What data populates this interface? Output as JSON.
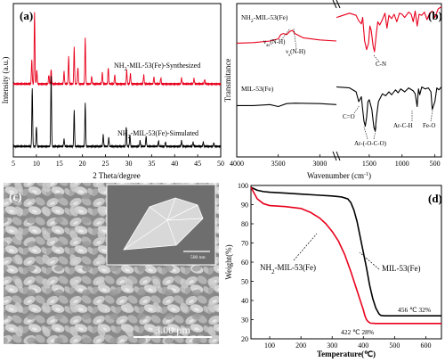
{
  "panels": {
    "a": {
      "letter": "(a)"
    },
    "b": {
      "letter": "(b)"
    },
    "c": {
      "letter": "(c)",
      "scale_bar": "3.00 μm",
      "inset_scale": "500 nm"
    },
    "d": {
      "letter": "(d)"
    }
  },
  "chart_data": [
    {
      "type": "line",
      "panel": "a",
      "xlabel": "2 Theta/degree",
      "ylabel": "Intensity (a.u.)",
      "xlim": [
        5,
        50
      ],
      "x_ticks": [
        "5",
        "10",
        "15",
        "20",
        "25",
        "30",
        "35",
        "40",
        "45",
        "50"
      ],
      "grid": false,
      "series": [
        {
          "name": "NH2-MIL-53(Fe)-Synthesized",
          "color": "#e8001c",
          "peaks": [
            [
              9.0,
              0.32
            ],
            [
              9.6,
              0.95
            ],
            [
              10.1,
              0.18
            ],
            [
              12.7,
              0.12
            ],
            [
              13.2,
              0.2
            ],
            [
              16.0,
              0.16
            ],
            [
              17.0,
              0.36
            ],
            [
              18.2,
              0.48
            ],
            [
              19.0,
              0.22
            ],
            [
              20.6,
              0.6
            ],
            [
              22.0,
              0.1
            ],
            [
              24.3,
              0.15
            ],
            [
              25.6,
              0.22
            ],
            [
              27.0,
              0.12
            ],
            [
              29.6,
              0.18
            ],
            [
              30.4,
              0.14
            ],
            [
              33.3,
              0.12
            ],
            [
              35.5,
              0.09
            ],
            [
              37.0,
              0.08
            ],
            [
              41.5,
              0.08
            ],
            [
              44.2,
              0.07
            ],
            [
              46.5,
              0.06
            ]
          ]
        },
        {
          "name": "NH2-MIL-53(Fe)-Simulated",
          "color": "#000000",
          "peaks": [
            [
              9.1,
              0.82
            ],
            [
              10.0,
              0.28
            ],
            [
              13.2,
              1.0
            ],
            [
              16.0,
              0.1
            ],
            [
              18.2,
              0.5
            ],
            [
              20.6,
              0.6
            ],
            [
              24.5,
              0.16
            ],
            [
              25.7,
              0.12
            ],
            [
              29.5,
              0.28
            ],
            [
              30.3,
              0.16
            ],
            [
              32.5,
              0.08
            ],
            [
              33.8,
              0.14
            ],
            [
              36.5,
              0.08
            ],
            [
              38.0,
              0.06
            ],
            [
              41.5,
              0.08
            ],
            [
              44.0,
              0.06
            ],
            [
              46.2,
              0.06
            ],
            [
              48.5,
              0.05
            ]
          ]
        }
      ]
    },
    {
      "type": "line",
      "panel": "b",
      "xlabel": "Wavenumber (cm⁻¹)",
      "ylabel": "Transmitance",
      "xlim": [
        4000,
        400
      ],
      "x_ticks": [
        "4000",
        "3500",
        "3000",
        "1500",
        "1000",
        "500"
      ],
      "axis_break": [
        2800,
        2000
      ],
      "series": [
        {
          "name": "NH2-MIL-53(Fe)",
          "color": "#e8001c",
          "x": [
            4000,
            3800,
            3600,
            3500,
            3470,
            3440,
            3400,
            3360,
            3330,
            3300,
            3200,
            3000,
            2800,
            2000,
            1800,
            1700,
            1660,
            1620,
            1600,
            1570,
            1540,
            1510,
            1490,
            1470,
            1440,
            1420,
            1390,
            1370,
            1340,
            1300,
            1260,
            1230,
            1200,
            1160,
            1120,
            1080,
            1040,
            1000,
            960,
            900,
            860,
            830,
            800,
            770,
            740,
            700,
            660,
            620,
            580,
            540,
            500,
            450,
            400
          ],
          "y": [
            0.58,
            0.585,
            0.6,
            0.62,
            0.66,
            0.67,
            0.66,
            0.69,
            0.7,
            0.67,
            0.63,
            0.61,
            0.6,
            0.82,
            0.86,
            0.84,
            0.79,
            0.76,
            0.82,
            0.6,
            0.52,
            0.58,
            0.74,
            0.7,
            0.55,
            0.5,
            0.68,
            0.78,
            0.75,
            0.8,
            0.86,
            0.72,
            0.84,
            0.81,
            0.85,
            0.78,
            0.86,
            0.85,
            0.82,
            0.87,
            0.85,
            0.78,
            0.88,
            0.74,
            0.85,
            0.84,
            0.87,
            0.8,
            0.86,
            0.88,
            0.82,
            0.9,
            0.92
          ]
        },
        {
          "name": "MIL-53(Fe)",
          "color": "#000000",
          "x": [
            4000,
            3800,
            3600,
            3500,
            3400,
            3300,
            3000,
            2800,
            2000,
            1800,
            1700,
            1660,
            1620,
            1600,
            1580,
            1560,
            1540,
            1520,
            1500,
            1460,
            1430,
            1410,
            1390,
            1360,
            1300,
            1250,
            1200,
            1160,
            1100,
            1060,
            1020,
            960,
            900,
            830,
            800,
            770,
            750,
            730,
            700,
            650,
            600,
            560,
            540,
            500,
            470,
            440,
            400
          ],
          "y": [
            0.26,
            0.26,
            0.27,
            0.25,
            0.28,
            0.285,
            0.28,
            0.27,
            0.45,
            0.44,
            0.4,
            0.3,
            0.35,
            0.22,
            0.1,
            0.05,
            0.14,
            0.3,
            0.32,
            0.22,
            0.04,
            0.0,
            0.14,
            0.3,
            0.38,
            0.36,
            0.4,
            0.37,
            0.42,
            0.39,
            0.43,
            0.4,
            0.44,
            0.41,
            0.38,
            0.25,
            0.43,
            0.37,
            0.45,
            0.43,
            0.44,
            0.4,
            0.22,
            0.3,
            0.44,
            0.42,
            0.45
          ]
        }
      ],
      "annotations": [
        "ν<sub>as</sub>(N-H)",
        "ν<sub>s</sub>(N-H)",
        "C-N",
        "C=O",
        "Ar-(-O-C-O)",
        "Ar-C-H",
        "Fe-O"
      ]
    },
    {
      "type": "line",
      "panel": "d",
      "xlabel": "Temperature(℃)",
      "ylabel": "Weight(%)",
      "xlim": [
        40,
        650
      ],
      "ylim": [
        20,
        100
      ],
      "x_ticks": [
        "100",
        "200",
        "300",
        "400",
        "500",
        "600"
      ],
      "y_ticks": [
        "20",
        "30",
        "40",
        "50",
        "60",
        "70",
        "80",
        "90",
        "100"
      ],
      "series": [
        {
          "name": "MIL-53(Fe)",
          "color": "#000000",
          "x": [
            40,
            60,
            80,
            100,
            150,
            200,
            250,
            300,
            330,
            350,
            360,
            370,
            380,
            390,
            400,
            410,
            420,
            430,
            440,
            450,
            456,
            470,
            500,
            550,
            600,
            650
          ],
          "y": [
            99,
            97.5,
            96.8,
            96.5,
            96,
            95.5,
            95,
            94.5,
            94,
            93,
            91,
            87,
            81,
            73,
            65,
            57,
            48,
            41,
            36,
            33,
            32.2,
            32,
            32,
            32,
            32,
            32
          ]
        },
        {
          "name": "NH2-MIL-53(Fe)",
          "color": "#e8001c",
          "x": [
            40,
            50,
            60,
            80,
            100,
            150,
            200,
            230,
            260,
            280,
            300,
            320,
            340,
            360,
            380,
            390,
            400,
            405,
            410,
            415,
            422,
            440,
            500,
            550,
            600,
            650
          ],
          "y": [
            99,
            96,
            93,
            90.5,
            89.5,
            89,
            88,
            86,
            83,
            80,
            76,
            71,
            64,
            55,
            45,
            40,
            35,
            32,
            30,
            29,
            28.2,
            28,
            28,
            28,
            28,
            28
          ]
        }
      ],
      "annotations": {
        "mil53": "MIL-53(Fe)",
        "nh2": "NH<tspan baseline-shift='sub' font-size='7'>2</tspan>-MIL-53(Fe)",
        "t1": "456 ℃ 32%",
        "t2": "422 ℃ 28%"
      }
    }
  ],
  "labels_a": {
    "syn": "NH2-MIL-53(Fe)-Synthesized",
    "sim": "NH2-MIL-53(Fe)-Simulated"
  },
  "labels_b": {
    "nh2": "NH2-MIL-53(Fe)",
    "mil": "MIL-53(Fe)",
    "vas": "vas(N-H)",
    "vs": "vs(N-H)",
    "cn": "C-N",
    "co": "C=O",
    "aroco": "Ar-(-O-C-O)",
    "arch": "Ar-C-H",
    "feo": "Fe-O"
  }
}
